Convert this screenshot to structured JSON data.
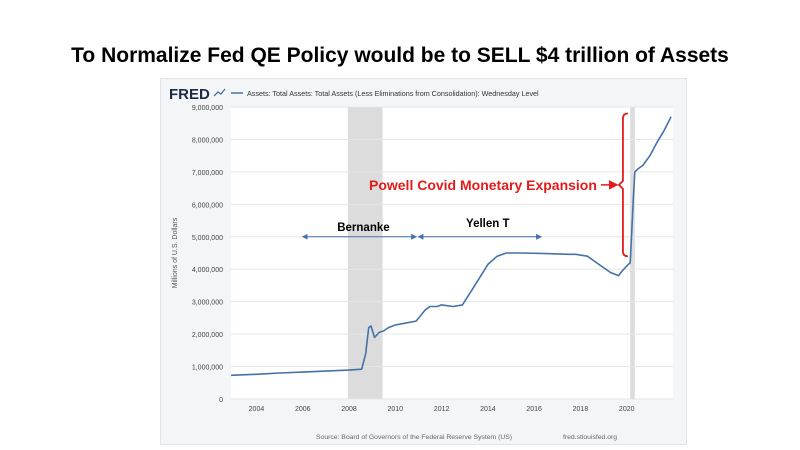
{
  "slide": {
    "title": "To Normalize Fed QE Policy would be to SELL $4 trillion of Assets"
  },
  "chart_data": {
    "type": "line",
    "logo": "FRED",
    "legend": "Assets: Total Assets: Total Assets (Less Eliminations from Consolidation): Wednesday Level",
    "ylabel": "Millions of U.S. Dollars",
    "source": "Source: Board of Governors of the Federal Reserve System (US)",
    "site": "fred.stlouisfed.org",
    "xlim": [
      2002.9,
      2022.0
    ],
    "ylim": [
      0,
      9000000
    ],
    "xticks": [
      2004,
      2006,
      2008,
      2010,
      2012,
      2014,
      2016,
      2018,
      2020
    ],
    "yticks": [
      0,
      1000000,
      2000000,
      3000000,
      4000000,
      5000000,
      6000000,
      7000000,
      8000000,
      9000000
    ],
    "ytick_labels": [
      "0",
      "1,000,000",
      "2,000,000",
      "3,000,000",
      "4,000,000",
      "5,000,000",
      "6,000,000",
      "7,000,000",
      "8,000,000",
      "9,000,000"
    ],
    "recessions": [
      [
        2007.95,
        2009.45
      ],
      [
        2020.15,
        2020.35
      ]
    ],
    "series": [
      {
        "name": "Total Assets",
        "color": "#4572a7",
        "x": [
          2002.9,
          2004.0,
          2005.0,
          2006.0,
          2007.0,
          2008.0,
          2008.55,
          2008.72,
          2008.85,
          2008.95,
          2009.1,
          2009.3,
          2009.5,
          2009.7,
          2010.0,
          2010.5,
          2010.9,
          2011.3,
          2011.5,
          2011.8,
          2012.0,
          2012.5,
          2012.9,
          2013.3,
          2013.7,
          2014.0,
          2014.4,
          2014.8,
          2015.5,
          2016.5,
          2017.5,
          2017.8,
          2018.3,
          2018.8,
          2019.3,
          2019.65,
          2019.75,
          2020.0,
          2020.15,
          2020.22,
          2020.28,
          2020.35,
          2020.5,
          2020.7,
          2021.0,
          2021.3,
          2021.6,
          2021.92
        ],
        "values": [
          730000,
          760000,
          800000,
          830000,
          860000,
          890000,
          920000,
          1400000,
          2200000,
          2250000,
          1900000,
          2050000,
          2100000,
          2200000,
          2280000,
          2350000,
          2400000,
          2750000,
          2850000,
          2850000,
          2900000,
          2850000,
          2900000,
          3350000,
          3800000,
          4150000,
          4400000,
          4500000,
          4500000,
          4480000,
          4460000,
          4460000,
          4400000,
          4150000,
          3900000,
          3800000,
          3900000,
          4100000,
          4200000,
          5200000,
          6100000,
          7000000,
          7100000,
          7200000,
          7500000,
          7900000,
          8250000,
          8700000
        ]
      }
    ],
    "annotations": {
      "bernanke": "Bernanke",
      "yellen": "Yellen   T",
      "powell": "Powell Covid Monetary Expansion",
      "bernanke_arrow": [
        2006.0,
        2010.9
      ],
      "yellen_arrow": [
        2011.0,
        2016.3
      ],
      "arrow_level": 5000000,
      "powell_bracket": [
        4400000,
        8800000
      ],
      "powell_bracket_x": 2019.75
    },
    "colors": {
      "line": "#4572a7",
      "recession": "#dcdcdc",
      "powell": "#e31b1b",
      "arrow": "#4572a7"
    }
  }
}
